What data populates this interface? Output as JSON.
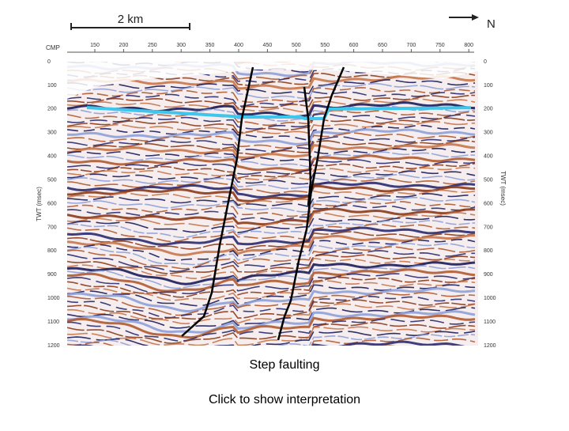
{
  "scale_bar": "2 km",
  "north_label": "N",
  "seismic_section": {
    "cmp_label": "CMP",
    "cmp_ticks": [
      "150",
      "200",
      "250",
      "300",
      "350",
      "400",
      "450",
      "500",
      "550",
      "600",
      "650",
      "700",
      "750",
      "800"
    ],
    "twt_label": "TWT (msec)",
    "twt_ticks": [
      "0",
      "100",
      "200",
      "300",
      "400",
      "500",
      "600",
      "700",
      "800",
      "900",
      "1000",
      "1100",
      "1200"
    ]
  },
  "caption": "Step faulting",
  "link": "Click to show interpretation"
}
